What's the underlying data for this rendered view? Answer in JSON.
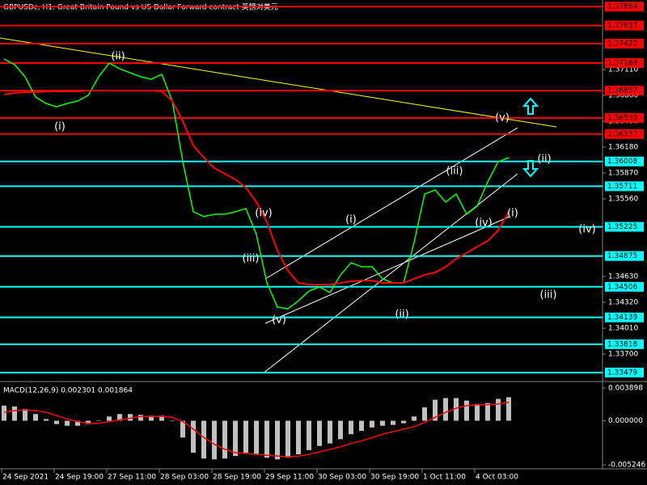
{
  "chart_data": [
    {
      "type": "line",
      "title": "GBPUSDc, H1:  Great Britain Pound vs US Dollar Forward contract 英镑对美元",
      "categories": [
        "24 Sep 2021",
        null,
        null,
        null,
        null,
        "24 Sep 19:00",
        null,
        null,
        null,
        null,
        "27 Sep 11:00",
        null,
        null,
        null,
        null,
        "28 Sep 03:00",
        null,
        null,
        null,
        null,
        "28 Sep 19:00",
        null,
        null,
        null,
        null,
        "29 Sep 11:00",
        null,
        null,
        null,
        null,
        "30 Sep 03:00",
        null,
        null,
        null,
        null,
        "30 Sep 19:00",
        null,
        null,
        null,
        null,
        "1 Oct 11:00",
        null,
        null,
        null,
        null,
        "4 Oct 03:00",
        null,
        null,
        null
      ],
      "series": [
        {
          "color": "#00ff00",
          "values": [
            1.37236,
            1.37168,
            1.37023,
            1.3678,
            1.36703,
            1.36664,
            1.36703,
            1.36732,
            1.368,
            1.37023,
            1.37187,
            1.37119,
            1.37071,
            1.37023,
            1.36994,
            1.37052,
            1.36732,
            1.36005,
            1.35405,
            1.35347,
            1.35376,
            1.35376,
            1.35405,
            1.35444,
            1.35133,
            1.34552,
            1.34262,
            1.34242,
            1.34339,
            1.34455,
            1.34504,
            1.34436,
            1.34649,
            1.34794,
            1.34746,
            1.34746,
            1.34601,
            1.34552,
            1.34552,
            1.35037,
            1.35618,
            1.35666,
            1.35521,
            1.35618,
            1.35376,
            1.35473,
            1.35763,
            1.36005,
            1.36054
          ]
        },
        {
          "color": "#ff0000",
          "values": [
            1.3681,
            1.36829,
            1.36839,
            1.36839,
            1.36848,
            1.36848,
            1.36848,
            1.36848,
            1.36858,
            1.36858,
            1.36858,
            1.36858,
            1.36858,
            1.36858,
            1.36858,
            1.36848,
            1.36732,
            1.3649,
            1.36199,
            1.36054,
            1.35928,
            1.3586,
            1.35792,
            1.35695,
            1.35521,
            1.35279,
            1.3494,
            1.34697,
            1.34552,
            1.34533,
            1.34533,
            1.34533,
            1.34552,
            1.34572,
            1.34581,
            1.34581,
            1.34552,
            1.34552,
            1.34552,
            1.34601,
            1.34649,
            1.34678,
            1.34746,
            1.34843,
            1.34911,
            1.34988,
            1.35056,
            1.35182,
            1.35405
          ]
        }
      ],
      "ylim": [
        1.3339,
        1.37943
      ],
      "yticks": [
        {
          "value": 1.3711,
          "label": "1.37110"
        },
        {
          "value": 1.368,
          "label": "1.36800"
        },
        {
          "value": 1.3649,
          "label": "1.36490"
        },
        {
          "value": 1.3618,
          "label": "1.36180"
        },
        {
          "value": 1.3587,
          "label": "1.35870"
        },
        {
          "value": 1.3556,
          "label": "1.35560"
        },
        {
          "value": 1.3463,
          "label": "1.34630"
        },
        {
          "value": 1.3432,
          "label": "1.34320"
        },
        {
          "value": 1.3401,
          "label": "1.34010"
        },
        {
          "value": 1.337,
          "label": "1.33700"
        }
      ],
      "levels": [
        {
          "value": 1.37864,
          "color": "#ff0000"
        },
        {
          "value": 1.37637,
          "color": "#ff0000"
        },
        {
          "value": 1.3742,
          "label": "1.37420",
          "color": "#ff0000"
        },
        {
          "value": 1.37188,
          "color": "#ff0000"
        },
        {
          "value": 1.36857,
          "color": "#ff0000"
        },
        {
          "value": 1.3653,
          "label": "1.36530",
          "color": "#ff0000"
        },
        {
          "value": 1.36337,
          "color": "#ff0000"
        },
        {
          "value": 1.36008,
          "color": "#00ffff"
        },
        {
          "value": 1.35711,
          "color": "#00ffff"
        },
        {
          "value": 1.35225,
          "color": "#00ffff"
        },
        {
          "value": 1.34875,
          "color": "#00ffff"
        },
        {
          "value": 1.34506,
          "color": "#00ffff"
        },
        {
          "value": 1.34139,
          "color": "#00ffff"
        },
        {
          "value": 1.33818,
          "color": "#00ffff"
        },
        {
          "value": 1.33479,
          "color": "#00ffff"
        }
      ],
      "annotations": [
        "(i)",
        "(ii)",
        "(iii)",
        "(iv)",
        "(v)",
        "(i)",
        "(ii)",
        "(iii)",
        "(iv)",
        "(v)",
        "(i)",
        "(ii)",
        "(iv)",
        "(iii)"
      ]
    },
    {
      "type": "macd",
      "title": "MACD(12,26,9) 0.002301 0.001864",
      "series": [
        {
          "color": "#c0c0c0",
          "values": [
            0.0018,
            0.0017,
            0.0014,
            0.0008,
            0.0002,
            -0.0004,
            -0.0006,
            -0.0006,
            -0.0004,
            0.0,
            0.0005,
            0.0008,
            0.0008,
            0.0007,
            0.0006,
            0.0006,
            0.0,
            -0.002,
            -0.0038,
            -0.0045,
            -0.0046,
            -0.0045,
            -0.0042,
            -0.0038,
            -0.004,
            -0.0044,
            -0.0046,
            -0.0044,
            -0.004,
            -0.0035,
            -0.003,
            -0.0027,
            -0.0022,
            -0.0016,
            -0.0012,
            -0.0008,
            -0.0006,
            -0.0005,
            -0.0003,
            0.0005,
            0.0016,
            0.0025,
            0.0027,
            0.0027,
            0.0024,
            0.002,
            0.0021,
            0.0026,
            0.0028
          ]
        },
        {
          "color": "#ff0000",
          "values": [
            0.001,
            0.0012,
            0.0013,
            0.0012,
            0.001,
            0.0006,
            0.0002,
            -0.0001,
            -0.0003,
            -0.0003,
            -0.0001,
            0.0001,
            0.0003,
            0.0005,
            0.0005,
            0.0005,
            0.0004,
            -0.0001,
            -0.001,
            -0.002,
            -0.0028,
            -0.0034,
            -0.0038,
            -0.0039,
            -0.004,
            -0.0041,
            -0.0042,
            -0.0043,
            -0.0042,
            -0.004,
            -0.0037,
            -0.0034,
            -0.0031,
            -0.0027,
            -0.0024,
            -0.002,
            -0.0016,
            -0.0013,
            -0.001,
            -0.0007,
            -0.0002,
            0.0004,
            0.001,
            0.0015,
            0.0018,
            0.0019,
            0.0019,
            0.002,
            0.0022
          ]
        }
      ],
      "ylim": [
        -0.005246,
        0.003898
      ],
      "yticks": [
        0.003898,
        {
          "value": 0,
          "label": "0.000000"
        },
        -0.005246
      ]
    }
  ]
}
